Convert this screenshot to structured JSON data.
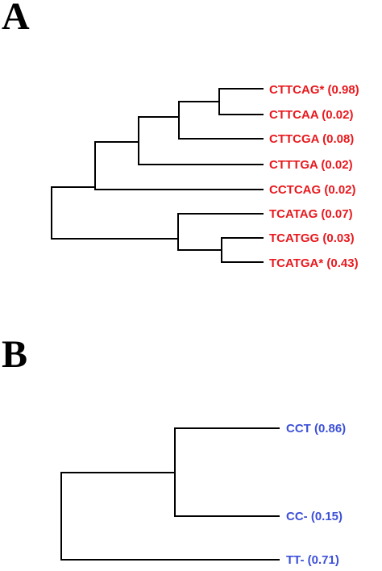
{
  "colors": {
    "panel_a_labels": "#e8191e",
    "panel_b_labels": "#3c4fd8",
    "branches": "#000000"
  },
  "panels": [
    {
      "label": "A",
      "leaves": [
        "CTTCAG* (0.98)",
        "CTTCAA (0.02)",
        "CTTCGA (0.08)",
        "CTTTGA (0.02)",
        "CCTCAG (0.02)",
        "TCATAG (0.07)",
        "TCATGG (0.03)",
        "TCATGA* (0.43)"
      ]
    },
    {
      "label": "B",
      "leaves": [
        "CCT (0.86)",
        "CC- (0.15)",
        "TT- (0.71)"
      ]
    }
  ]
}
